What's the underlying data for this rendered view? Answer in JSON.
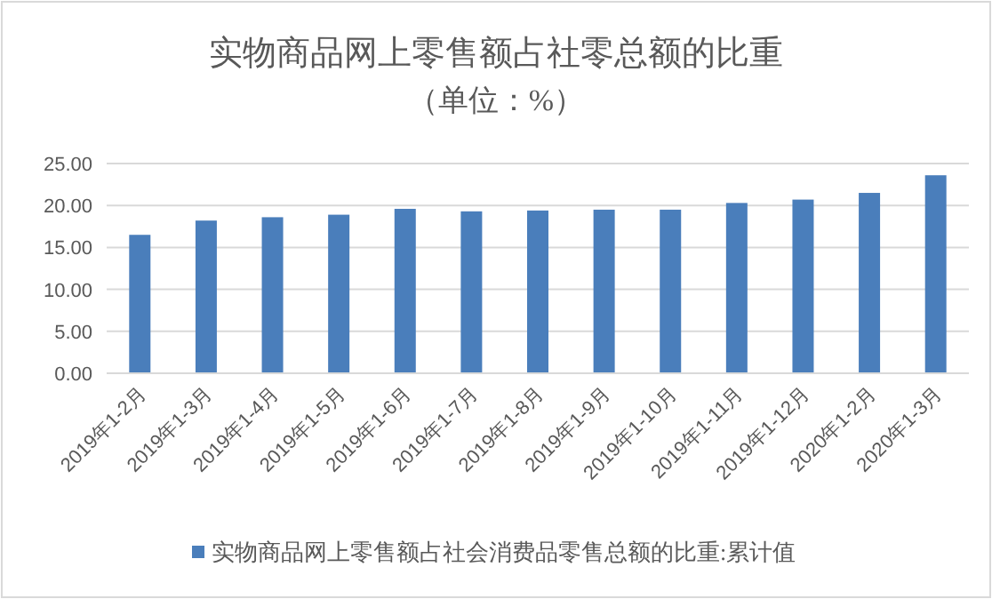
{
  "chart_data": {
    "type": "bar",
    "title": "实物商品网上零售额占社零总额的比重",
    "subtitle": "（单位：%）",
    "categories": [
      "2019年1-2月",
      "2019年1-3月",
      "2019年1-4月",
      "2019年1-5月",
      "2019年1-6月",
      "2019年1-7月",
      "2019年1-8月",
      "2019年1-9月",
      "2019年1-10月",
      "2019年1-11月",
      "2019年1-12月",
      "2020年1-2月",
      "2020年1-3月"
    ],
    "series": [
      {
        "name": "实物商品网上零售额占社会消费品零售总额的比重:累计值",
        "color": "#4a7ebb",
        "values": [
          16.5,
          18.2,
          18.6,
          18.9,
          19.6,
          19.3,
          19.4,
          19.5,
          19.5,
          20.3,
          20.7,
          21.5,
          23.6
        ]
      }
    ],
    "ylim": [
      0,
      25
    ],
    "yticks": [
      {
        "value": 0,
        "label": "0.00"
      },
      {
        "value": 5,
        "label": "5.00"
      },
      {
        "value": 10,
        "label": "10.00"
      },
      {
        "value": 15,
        "label": "15.00"
      },
      {
        "value": 20,
        "label": "20.00"
      },
      {
        "value": 25,
        "label": "25.00"
      }
    ],
    "grid": "y",
    "legend": "bottom"
  }
}
